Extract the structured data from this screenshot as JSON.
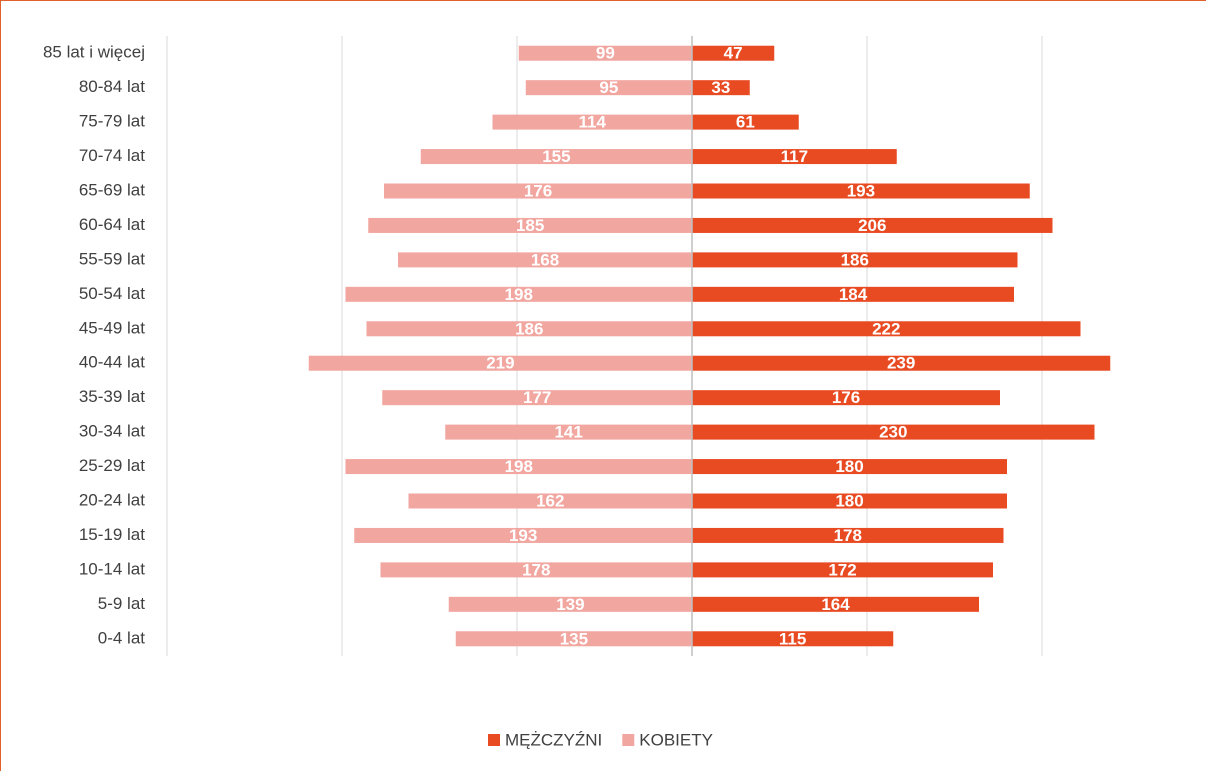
{
  "chart_data": {
    "type": "pyramid",
    "categories": [
      "85 lat i więcej",
      "80-84 lat",
      "75-79 lat",
      "70-74 lat",
      "65-69 lat",
      "60-64 lat",
      "55-59 lat",
      "50-54 lat",
      "45-49 lat",
      "40-44 lat",
      "35-39 lat",
      "30-34 lat",
      "25-29 lat",
      "20-24 lat",
      "15-19 lat",
      "10-14 lat",
      "5-9 lat",
      "0-4 lat"
    ],
    "series": [
      {
        "name": "MĘŻCZYŹNI",
        "color": "#e84a22",
        "side": "right",
        "values": [
          47,
          33,
          61,
          117,
          193,
          206,
          186,
          184,
          222,
          239,
          176,
          230,
          180,
          180,
          178,
          172,
          164,
          115
        ]
      },
      {
        "name": "KOBIETY",
        "color": "#f2a6a0",
        "side": "left",
        "values": [
          99,
          95,
          114,
          155,
          176,
          185,
          168,
          198,
          186,
          219,
          177,
          141,
          198,
          162,
          193,
          178,
          139,
          135
        ]
      }
    ],
    "xlim": [
      -300,
      300
    ],
    "xticks": [
      -300,
      -200,
      -100,
      0,
      100,
      200
    ],
    "grid": true,
    "legend": "bottom"
  }
}
